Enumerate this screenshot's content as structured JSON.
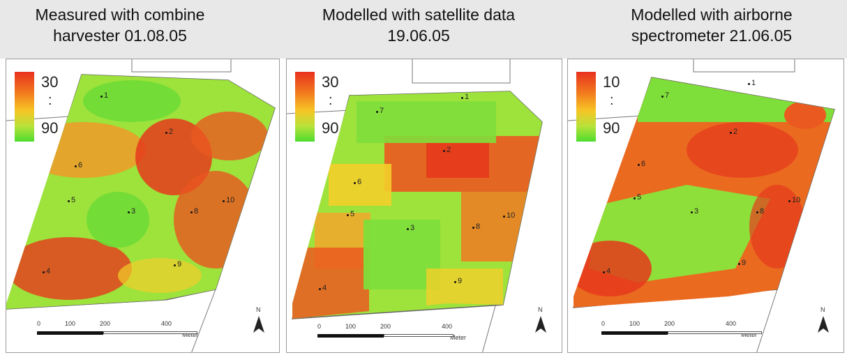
{
  "panels": [
    {
      "title_line1": "Measured with combine",
      "title_line2": "harvester 01.08.05",
      "legend_top": "30",
      "legend_mid": ":",
      "legend_bottom": "90",
      "scale_ticks": [
        "0",
        "100",
        "200",
        "400"
      ],
      "scale_unit": "Meter",
      "north_label": "N",
      "points": [
        "1",
        "2",
        "3",
        "4",
        "5",
        "6",
        "8",
        "9",
        "10"
      ]
    },
    {
      "title_line1": "Modelled with satellite data",
      "title_line2": "19.06.05",
      "legend_top": "30",
      "legend_mid": ":",
      "legend_bottom": "90",
      "scale_ticks": [
        "0",
        "100",
        "200",
        "400"
      ],
      "scale_unit": "Meter",
      "north_label": "N",
      "points": [
        "1",
        "2",
        "3",
        "4",
        "5",
        "6",
        "7",
        "8",
        "9",
        "10"
      ]
    },
    {
      "title_line1": "Modelled with airborne",
      "title_line2": "spectrometer 21.06.05",
      "legend_top": "10",
      "legend_mid": ":",
      "legend_bottom": "90",
      "scale_ticks": [
        "0",
        "100",
        "200",
        "400"
      ],
      "scale_unit": "Meter",
      "north_label": "N",
      "points": [
        "1",
        "2",
        "3",
        "4",
        "5",
        "6",
        "7",
        "8",
        "9",
        "10"
      ]
    }
  ],
  "colors": {
    "red": "#e5391c",
    "orange": "#f27a1e",
    "yellow": "#f2cf2a",
    "lightgreen": "#b8e23a",
    "green": "#5fd93a",
    "header_bg": "#e8e8e8"
  }
}
